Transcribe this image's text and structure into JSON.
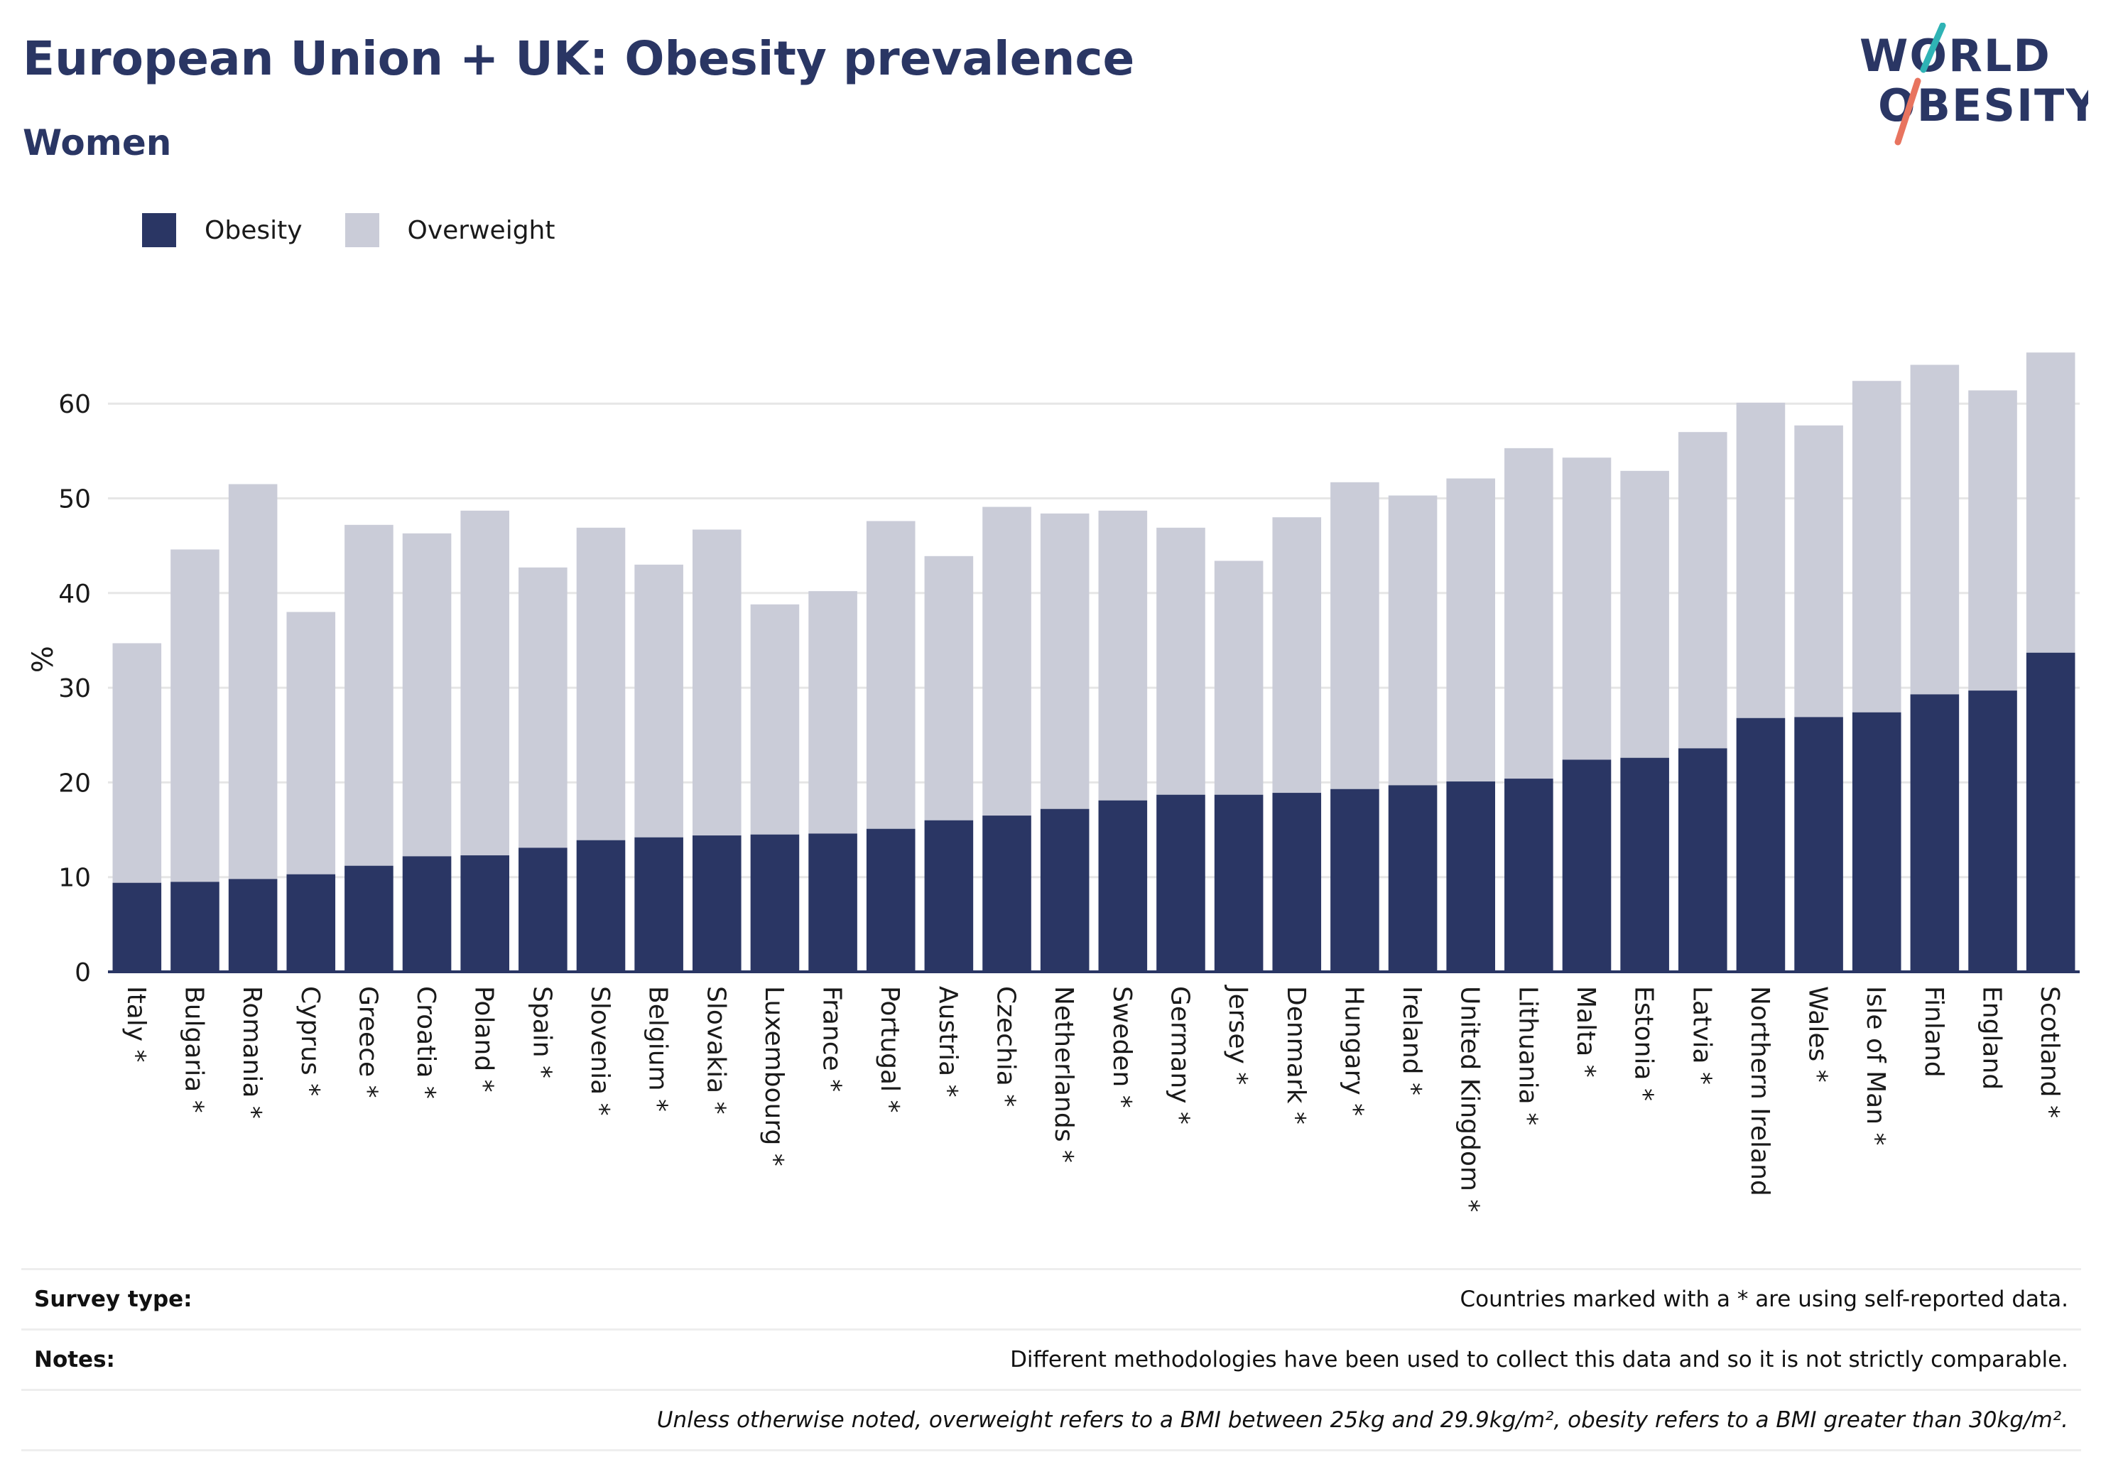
{
  "header": {
    "title": "European Union + UK: Obesity prevalence",
    "subtitle": "Women"
  },
  "logo": {
    "line1": "WORLD",
    "line2": "OBESITY",
    "accent_teal": "#2fb3b5",
    "accent_coral": "#e8745f"
  },
  "legend": {
    "obesity_label": "Obesity",
    "overweight_label": "Overweight"
  },
  "colors": {
    "obesity": "#2a3664",
    "overweight": "#caccd8",
    "grid": "#e6e6e6",
    "axis": "#2a3664"
  },
  "notes": {
    "survey_type_label": "Survey type:",
    "survey_type_value": "Countries marked with a * are using self-reported data.",
    "notes_label": "Notes:",
    "notes_value": "Different methodologies have been used to collect this data and so it is not strictly comparable.",
    "definition": "Unless otherwise noted, overweight refers to a BMI between 25kg and 29.9kg/m², obesity refers to a BMI greater than 30kg/m²."
  },
  "chart_data": {
    "type": "bar",
    "stacked": true,
    "title": "European Union + UK: Obesity prevalence",
    "subtitle": "Women",
    "ylabel": "%",
    "xlabel": "",
    "ylim": [
      0,
      66
    ],
    "yticks": [
      0,
      10,
      20,
      30,
      40,
      50,
      60
    ],
    "grid": true,
    "legend_position": "top-left",
    "categories": [
      "Italy *",
      "Bulgaria *",
      "Romania *",
      "Cyprus *",
      "Greece *",
      "Croatia *",
      "Poland *",
      "Spain *",
      "Slovenia *",
      "Belgium *",
      "Slovakia *",
      "Luxembourg *",
      "France *",
      "Portugal *",
      "Austria *",
      "Czechia *",
      "Netherlands *",
      "Sweden *",
      "Germany *",
      "Jersey *",
      "Denmark *",
      "Hungary *",
      "Ireland *",
      "United Kingdom *",
      "Lithuania *",
      "Malta *",
      "Estonia *",
      "Latvia *",
      "Northern Ireland",
      "Wales *",
      "Isle of Man *",
      "Finland",
      "England",
      "Scotland *"
    ],
    "series": [
      {
        "name": "Obesity",
        "values": [
          9.4,
          9.5,
          9.8,
          10.3,
          11.2,
          12.2,
          12.3,
          13.1,
          13.9,
          14.2,
          14.4,
          14.5,
          14.6,
          15.1,
          16.0,
          16.5,
          17.2,
          18.1,
          18.7,
          18.7,
          18.9,
          19.3,
          19.7,
          20.1,
          20.4,
          22.4,
          22.6,
          23.6,
          26.8,
          26.9,
          27.4,
          29.3,
          29.7,
          33.7
        ]
      },
      {
        "name": "Overweight",
        "values": [
          25.3,
          35.1,
          41.7,
          27.7,
          36.0,
          34.1,
          36.4,
          29.6,
          33.0,
          28.8,
          32.3,
          24.3,
          25.6,
          32.5,
          27.9,
          32.6,
          31.2,
          30.6,
          28.2,
          24.7,
          29.1,
          32.4,
          30.6,
          32.0,
          34.9,
          31.9,
          30.3,
          33.4,
          33.3,
          30.8,
          35.0,
          34.8,
          31.7,
          31.7
        ]
      }
    ]
  }
}
